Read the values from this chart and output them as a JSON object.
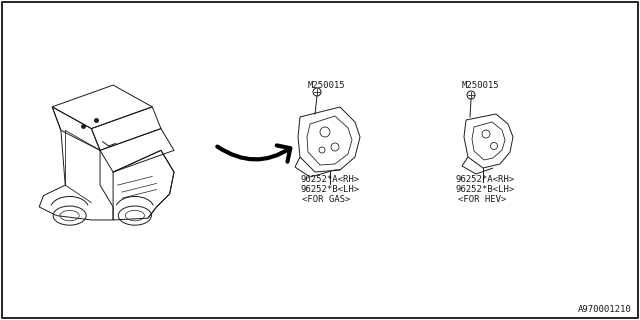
{
  "bg_color": "#ffffff",
  "border_color": "#000000",
  "diagram_id": "A970001210",
  "gas_label_line1": "96252*A<RH>",
  "gas_label_line2": "96252*B<LH>",
  "gas_label_line3": "<FOR GAS>",
  "hev_label_line1": "96252*A<RH>",
  "hev_label_line2": "96252*B<LH>",
  "hev_label_line3": "<FOR HEV>",
  "bolt_label1": "M250015",
  "bolt_label2": "M250015",
  "text_color": "#1a1a1a",
  "line_color": "#1a1a1a",
  "font_size_labels": 6.5,
  "font_size_diagram_id": 6.5
}
